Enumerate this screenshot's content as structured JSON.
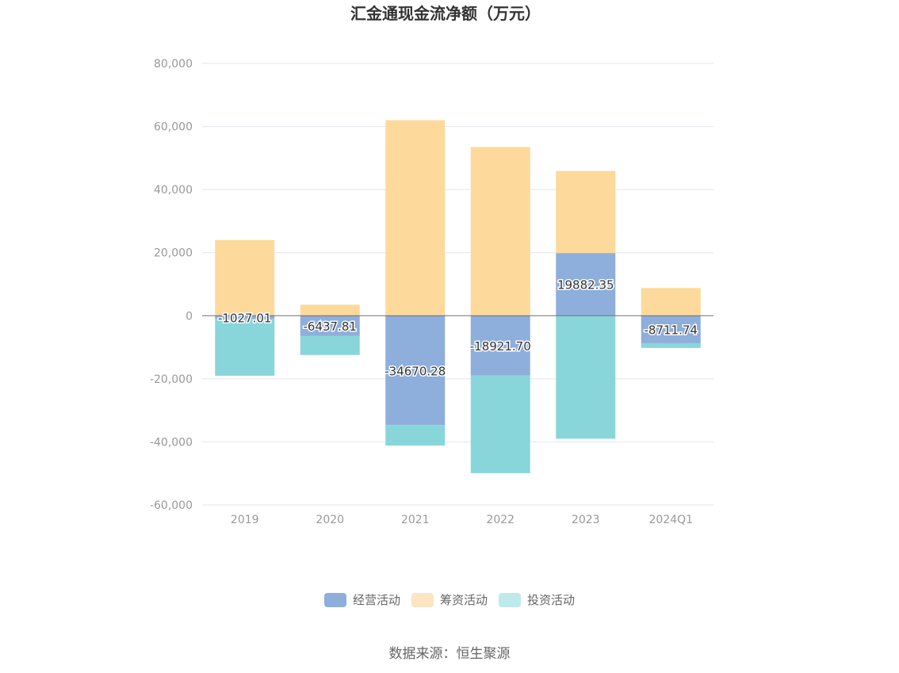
{
  "chart_data": {
    "type": "bar",
    "stacked": true,
    "title": "汇金通现金流净额（万元）",
    "source": "数据来源：恒生聚源",
    "categories": [
      "2019",
      "2020",
      "2021",
      "2022",
      "2023",
      "2024Q1"
    ],
    "ylim": [
      -60000,
      80000
    ],
    "yticks": [
      80000,
      60000,
      40000,
      20000,
      0,
      -20000,
      -40000,
      -60000
    ],
    "ytick_labels": [
      "80,000",
      "60,000",
      "40,000",
      "20,000",
      "0",
      "-20,000",
      "-40,000",
      "-60,000"
    ],
    "grid": true,
    "legend_position": "bottom",
    "series": [
      {
        "name": "经营活动",
        "color": "#8eaedb",
        "legend_color": "#8eaedb",
        "values": [
          -1027.01,
          -6437.81,
          -34670.28,
          -18921.7,
          19882.35,
          -8711.74
        ],
        "labels": [
          "-1027.01",
          "-6437.81",
          "-34670.28",
          "-18921.70",
          "19882.35",
          "-8711.74"
        ]
      },
      {
        "name": "筹资活动",
        "color": "#fdd99b",
        "legend_color": "#fde5c2",
        "values": [
          24000,
          3500,
          62000,
          53500,
          26000,
          8800
        ]
      },
      {
        "name": "投资活动",
        "color": "#88d6da",
        "legend_color": "#bfeaec",
        "values": [
          -18000,
          -6000,
          -6500,
          -31000,
          -39000,
          -1500
        ]
      }
    ]
  }
}
